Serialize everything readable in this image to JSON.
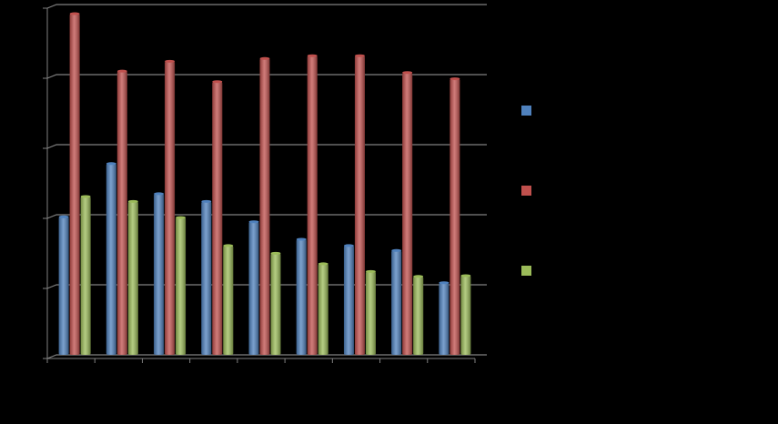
{
  "chart_data": {
    "type": "bar",
    "categories": [
      null,
      null,
      null,
      null,
      null,
      null,
      null,
      null,
      null
    ],
    "series": [
      {
        "color": "#4f81bd",
        "values": [
          1.97,
          2.73,
          2.3,
          2.19,
          1.9,
          1.65,
          1.56,
          1.49,
          1.03
        ]
      },
      {
        "color": "#c0504d",
        "values": [
          4.87,
          4.05,
          4.19,
          3.9,
          4.23,
          4.27,
          4.27,
          4.03,
          3.94
        ]
      },
      {
        "color": "#9bbb59",
        "values": [
          2.26,
          2.19,
          1.96,
          1.56,
          1.45,
          1.3,
          1.19,
          1.12,
          1.13
        ]
      }
    ],
    "ylim": [
      0,
      5
    ],
    "yticks": [
      0,
      1,
      2,
      3,
      4,
      5
    ],
    "grid": true
  }
}
